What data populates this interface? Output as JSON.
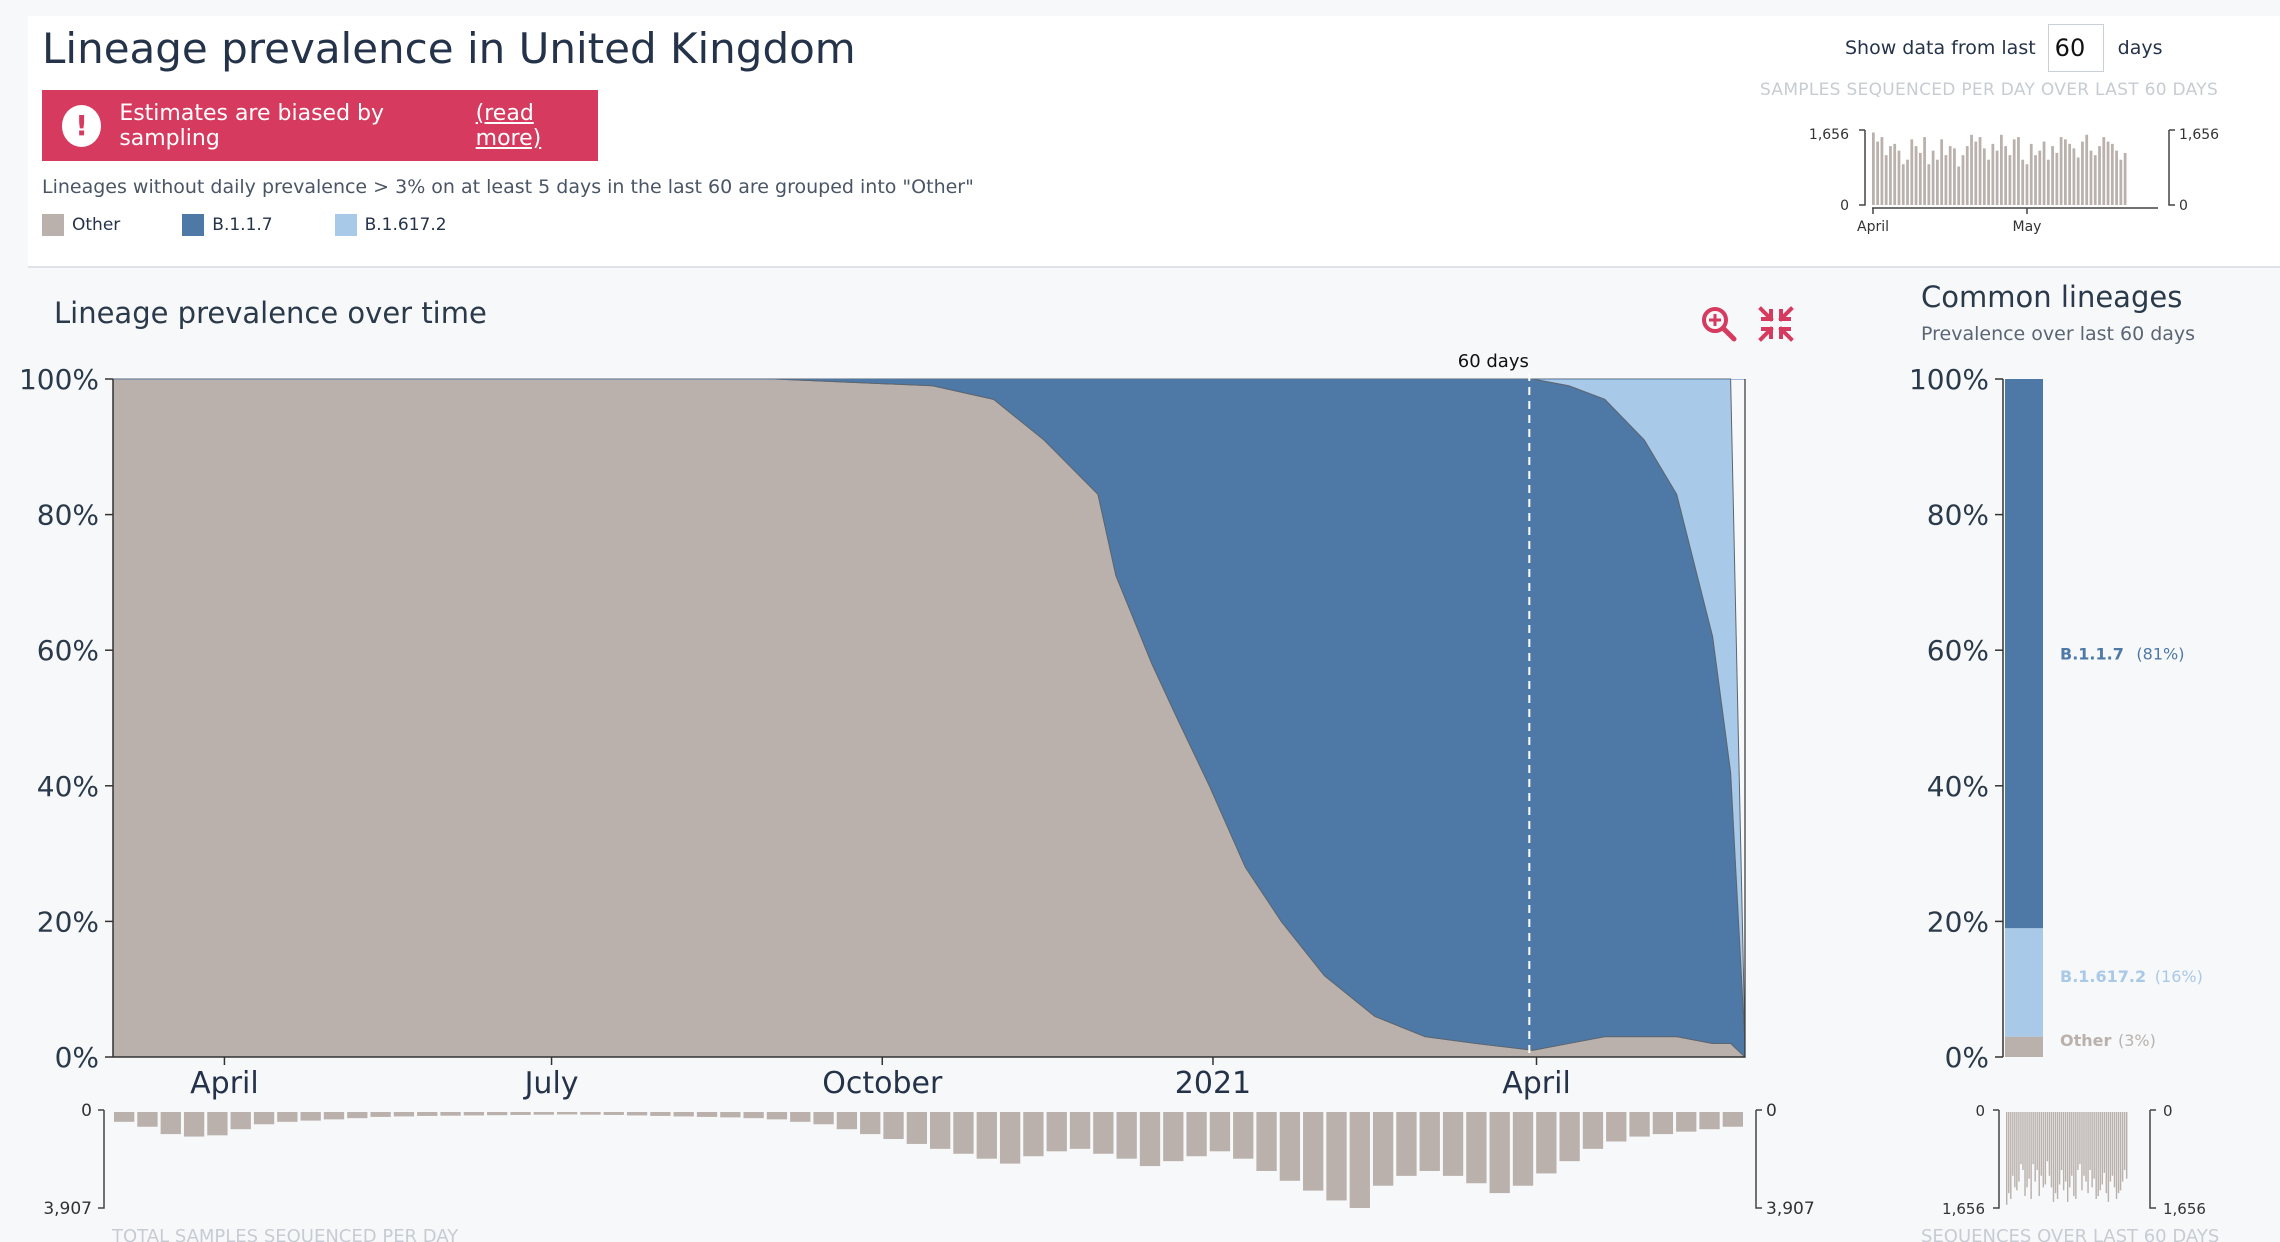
{
  "header": {
    "title": "Lineage prevalence in United Kingdom",
    "bias_text": "Estimates are biased by sampling",
    "bias_link": "(read more)",
    "grouping_note": "Lineages without daily prevalence > 3% on at least 5 days in the last 60 are grouped into \"Other\"",
    "legend": [
      {
        "label": "Other",
        "color": "#bab1ac"
      },
      {
        "label": "B.1.1.7",
        "color": "#4e79a7"
      },
      {
        "label": "B.1.617.2",
        "color": "#a8c9e8"
      }
    ],
    "days_label_before": "Show data from last",
    "days_value": "60",
    "days_label_after": "days",
    "samples_title": "SAMPLES SEQUENCED PER DAY OVER LAST 60 DAYS",
    "mini_ymax": "1,656",
    "mini_ymin": "0",
    "mini_ticks": [
      "April",
      "May"
    ]
  },
  "main": {
    "subtitle": "Lineage prevalence over time",
    "marker_label": "60 days",
    "bottom_label": "TOTAL SAMPLES SEQUENCED PER DAY",
    "bottom_scale_top": "0",
    "bottom_scale_bottom": "3,907"
  },
  "side": {
    "title": "Common lineages",
    "subtitle": "Prevalence over last 60 days",
    "bottom_label": "SEQUENCES OVER LAST 60 DAYS",
    "scale_top": "0",
    "scale_bottom": "1,656"
  },
  "colors": {
    "other": "#bab1ac",
    "b117": "#4e79a7",
    "b16172": "#a8c9e8",
    "accent": "#d63a5e"
  },
  "chart_data": [
    {
      "type": "area",
      "stacked": true,
      "normalized": true,
      "title": "Lineage prevalence over time",
      "x_ticks": [
        "April",
        "July",
        "October",
        "2021",
        "April"
      ],
      "y_ticks": [
        "0%",
        "20%",
        "40%",
        "60%",
        "80%",
        "100%"
      ],
      "ylim": [
        0,
        100
      ],
      "x": [
        "2020-03-01",
        "2020-09-01",
        "2020-10-15",
        "2020-11-01",
        "2020-11-15",
        "2020-11-30",
        "2020-12-05",
        "2020-12-15",
        "2020-12-22",
        "2020-12-31",
        "2021-01-10",
        "2021-01-20",
        "2021-02-01",
        "2021-02-15",
        "2021-03-01",
        "2021-03-15",
        "2021-03-31",
        "2021-04-10",
        "2021-04-20",
        "2021-05-01",
        "2021-05-10",
        "2021-05-20",
        "2021-05-25",
        "2021-05-29"
      ],
      "series": [
        {
          "name": "Other",
          "values": [
            100,
            100,
            99,
            97,
            91,
            83,
            71,
            58,
            50,
            40,
            28,
            20,
            12,
            6,
            3,
            2,
            1,
            2,
            3,
            3,
            3,
            2,
            2,
            0
          ]
        },
        {
          "name": "B.1.1.7",
          "values": [
            0,
            0,
            1,
            3,
            9,
            17,
            29,
            42,
            50,
            60,
            72,
            80,
            88,
            94,
            97,
            98,
            99,
            97,
            94,
            88,
            80,
            60,
            40,
            2
          ]
        },
        {
          "name": "B.1.617.2",
          "values": [
            0,
            0,
            0,
            0,
            0,
            0,
            0,
            0,
            0,
            0,
            0,
            0,
            0,
            0,
            0,
            0,
            0,
            1,
            3,
            9,
            17,
            38,
            58,
            0
          ]
        }
      ],
      "annotation": "60 days"
    },
    {
      "type": "bar",
      "stacked": true,
      "title": "Common lineages",
      "subtitle": "Prevalence over last 60 days",
      "y_ticks": [
        "0%",
        "20%",
        "40%",
        "60%",
        "80%",
        "100%"
      ],
      "categories": [
        "Other",
        "B.1.617.2",
        "B.1.1.7"
      ],
      "values": [
        3,
        16,
        81
      ],
      "labels": [
        "(3%)",
        "(16%)",
        "(81%)"
      ]
    },
    {
      "type": "bar",
      "title": "TOTAL SAMPLES SEQUENCED PER DAY",
      "ylim": [
        0,
        3907
      ],
      "x_range": [
        "2020-03-01",
        "2021-05-29"
      ],
      "values": [
        400,
        600,
        900,
        1000,
        950,
        700,
        500,
        400,
        350,
        300,
        250,
        200,
        180,
        160,
        150,
        140,
        130,
        120,
        110,
        100,
        110,
        120,
        140,
        160,
        180,
        200,
        220,
        250,
        300,
        400,
        500,
        700,
        900,
        1100,
        1300,
        1500,
        1700,
        1900,
        2100,
        1800,
        1600,
        1500,
        1700,
        1900,
        2200,
        2000,
        1800,
        1600,
        1900,
        2400,
        2800,
        3200,
        3600,
        3907,
        3000,
        2600,
        2400,
        2600,
        2900,
        3300,
        3000,
        2500,
        2000,
        1500,
        1200,
        1000,
        900,
        800,
        700,
        600
      ]
    },
    {
      "type": "bar",
      "title": "SAMPLES SEQUENCED PER DAY OVER LAST 60 DAYS",
      "x_ticks": [
        "April",
        "May"
      ],
      "ylim": [
        0,
        1656
      ],
      "values": [
        1600,
        1400,
        1500,
        1100,
        1300,
        1350,
        1200,
        900,
        1000,
        1450,
        1300,
        1150,
        1500,
        900,
        1200,
        1000,
        1450,
        1100,
        1300,
        1250,
        850,
        1100,
        1300,
        1550,
        1400,
        1500,
        1250,
        1000,
        1350,
        1200,
        1550,
        1300,
        1100,
        1450,
        1500,
        1000,
        900,
        1350,
        1100,
        1200,
        1400,
        1000,
        1300,
        1150,
        1500,
        1450,
        1350,
        1250,
        1050,
        1400,
        1550,
        1200,
        1100,
        1300,
        1500,
        1400,
        1350,
        1200,
        1000,
        1150
      ]
    }
  ]
}
